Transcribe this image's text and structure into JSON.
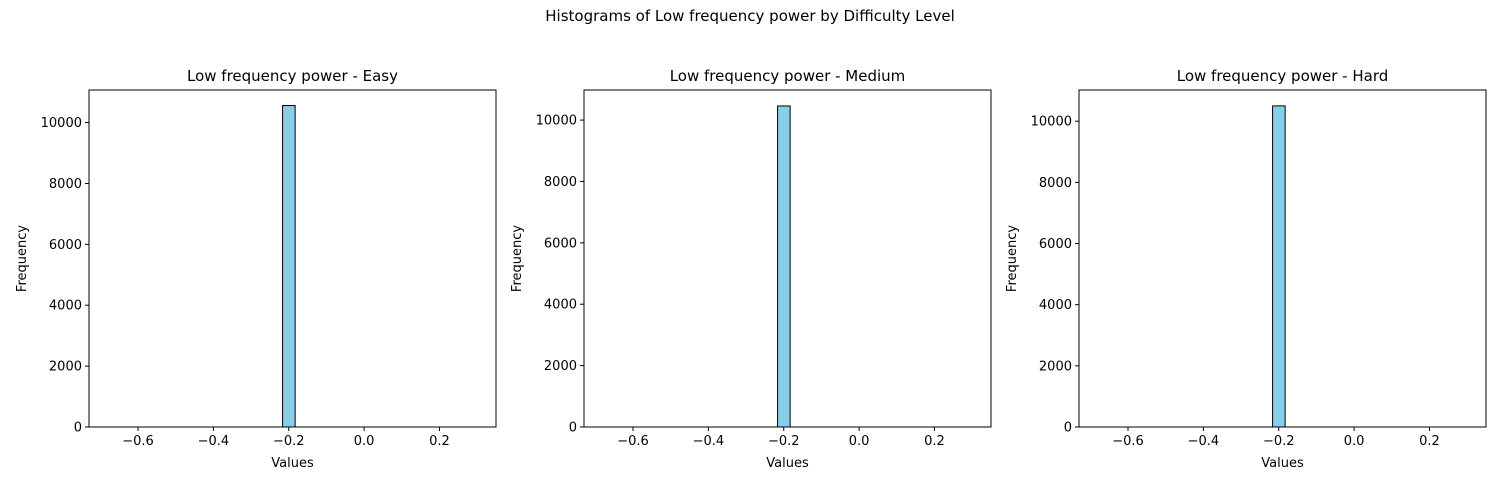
{
  "chart_data": {
    "suptitle": "Histograms of Low frequency power by Difficulty Level",
    "type": "bar",
    "panels": [
      {
        "title": "Low frequency power - Easy",
        "xlabel": "Values",
        "ylabel": "Frequency",
        "xlim": [
          -0.73,
          0.35
        ],
        "ylim": [
          0,
          11070
        ],
        "xticks": [
          -0.6,
          -0.4,
          -0.2,
          0.0,
          0.2
        ],
        "xtick_labels": [
          "−0.6",
          "−0.4",
          "−0.2",
          "0.0",
          "0.2"
        ],
        "yticks": [
          0,
          2000,
          4000,
          6000,
          8000,
          10000
        ],
        "ytick_labels": [
          "0",
          "2000",
          "4000",
          "6000",
          "8000",
          "10000"
        ],
        "bins": {
          "start": -0.683,
          "end": 0.317,
          "count": 30
        },
        "bars": [
          {
            "x0": -0.2163,
            "x1": -0.183,
            "value": 10560
          }
        ],
        "bar_color": "#87ceeb",
        "edge_color": "#000000",
        "grid": false
      },
      {
        "title": "Low frequency power - Medium",
        "xlabel": "Values",
        "ylabel": "Frequency",
        "xlim": [
          -0.73,
          0.35
        ],
        "ylim": [
          0,
          10980
        ],
        "xticks": [
          -0.6,
          -0.4,
          -0.2,
          0.0,
          0.2
        ],
        "xtick_labels": [
          "−0.6",
          "−0.4",
          "−0.2",
          "0.0",
          "0.2"
        ],
        "yticks": [
          0,
          2000,
          4000,
          6000,
          8000,
          10000
        ],
        "ytick_labels": [
          "0",
          "2000",
          "4000",
          "6000",
          "8000",
          "10000"
        ],
        "bins": {
          "start": -0.683,
          "end": 0.317,
          "count": 30
        },
        "bars": [
          {
            "x0": -0.2163,
            "x1": -0.183,
            "value": 10460
          }
        ],
        "bar_color": "#87ceeb",
        "edge_color": "#000000",
        "grid": false
      },
      {
        "title": "Low frequency power - Hard",
        "xlabel": "Values",
        "ylabel": "Frequency",
        "xlim": [
          -0.73,
          0.35
        ],
        "ylim": [
          0,
          11020
        ],
        "xticks": [
          -0.6,
          -0.4,
          -0.2,
          0.0,
          0.2
        ],
        "xtick_labels": [
          "−0.6",
          "−0.4",
          "−0.2",
          "0.0",
          "0.2"
        ],
        "yticks": [
          0,
          2000,
          4000,
          6000,
          8000,
          10000
        ],
        "ytick_labels": [
          "0",
          "2000",
          "4000",
          "6000",
          "8000",
          "10000"
        ],
        "bins": {
          "start": -0.683,
          "end": 0.317,
          "count": 30
        },
        "bars": [
          {
            "x0": -0.2163,
            "x1": -0.183,
            "value": 10500
          }
        ],
        "bar_color": "#87ceeb",
        "edge_color": "#000000",
        "grid": false
      }
    ]
  }
}
